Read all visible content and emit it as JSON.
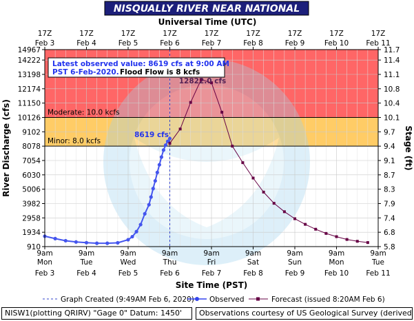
{
  "chart_data": {
    "type": "line",
    "title": "NISQUALLY RIVER NEAR NATIONAL",
    "top_axis_title": "Universal Time (UTC)",
    "top_axis_ticks": [
      {
        "line1": "17Z",
        "line2": "Feb 3"
      },
      {
        "line1": "17Z",
        "line2": "Feb 4"
      },
      {
        "line1": "17Z",
        "line2": "Feb 5"
      },
      {
        "line1": "17Z",
        "line2": "Feb 6"
      },
      {
        "line1": "17Z",
        "line2": "Feb 7"
      },
      {
        "line1": "17Z",
        "line2": "Feb 8"
      },
      {
        "line1": "17Z",
        "line2": "Feb 9"
      },
      {
        "line1": "17Z",
        "line2": "Feb 10"
      },
      {
        "line1": "17Z",
        "line2": "Feb 11"
      }
    ],
    "xlabel": "Site Time (PST)",
    "x_ticks": [
      {
        "line1": "9am",
        "line2": "Mon",
        "line3": "Feb 3"
      },
      {
        "line1": "9am",
        "line2": "Tue",
        "line3": "Feb 4"
      },
      {
        "line1": "9am",
        "line2": "Wed",
        "line3": "Feb 5"
      },
      {
        "line1": "9am",
        "line2": "Thu",
        "line3": "Feb 6"
      },
      {
        "line1": "9am",
        "line2": "Fri",
        "line3": "Feb 7"
      },
      {
        "line1": "9am",
        "line2": "Sat",
        "line3": "Feb 8"
      },
      {
        "line1": "9am",
        "line2": "Sun",
        "line3": "Feb 9"
      },
      {
        "line1": "9am",
        "line2": "Mon",
        "line3": "Feb 10"
      },
      {
        "line1": "9am",
        "line2": "Tue",
        "line3": "Feb 11"
      }
    ],
    "xlim_days": [
      0,
      8
    ],
    "ylabel": "River Discharge (cfs)",
    "y2label": "Stage (ft)",
    "ylim": [
      910,
      14967
    ],
    "y_ticks": [
      910,
      1934,
      2958,
      3982,
      5006,
      6030,
      7054,
      8078,
      9102,
      10126,
      11150,
      12174,
      13198,
      14222,
      14967
    ],
    "y2_ticks": [
      "5.8",
      "6.8",
      "7.4",
      "7.9",
      "8.3",
      "8.7",
      "9.1",
      "9.4",
      "9.7",
      "10.1",
      "10.4",
      "10.8",
      "11.1",
      "11.4",
      "11.7"
    ],
    "flood_bands": [
      {
        "name": "Moderate",
        "label": "Moderate: 10.0 kcfs",
        "from": 10126,
        "to": 14967,
        "color": "#ff6666"
      },
      {
        "name": "Minor",
        "label": "Minor: 8.0 kcfs",
        "from": 8078,
        "to": 10126,
        "color": "#ffcc66"
      }
    ],
    "grid": true,
    "annotation": {
      "line1": "Latest observed value: 8619 cfs at 9:00 AM",
      "line2a": "PST 6-Feb-2020.",
      "line2b": "Flood Flow is 8 kcfs"
    },
    "latest_label": "8619 cfs",
    "peak_label": "12822.0 cfs",
    "series": [
      {
        "name": "Observed",
        "color": "#4455ee",
        "x": [
          0,
          0.25,
          0.5,
          0.75,
          1.0,
          1.25,
          1.5,
          1.75,
          2.0,
          2.1,
          2.2,
          2.3,
          2.4,
          2.5,
          2.55,
          2.6,
          2.65,
          2.7,
          2.75,
          2.8,
          2.85,
          2.9,
          2.95,
          3.0
        ],
        "y": [
          1650,
          1480,
          1330,
          1240,
          1190,
          1150,
          1150,
          1180,
          1400,
          1620,
          1980,
          2480,
          3250,
          3900,
          4450,
          5050,
          5600,
          6200,
          6750,
          7300,
          7800,
          8150,
          8420,
          8619
        ]
      },
      {
        "name": "Forecast",
        "color": "#660044",
        "x": [
          3.0,
          3.25,
          3.5,
          3.75,
          4.0,
          4.25,
          4.5,
          4.75,
          5.0,
          5.25,
          5.5,
          5.75,
          6.0,
          6.25,
          6.5,
          6.75,
          7.0,
          7.25,
          7.5,
          7.75
        ],
        "y": [
          8280,
          9300,
          11200,
          12822,
          12600,
          10500,
          8078,
          6900,
          5800,
          4800,
          4000,
          3400,
          2900,
          2500,
          2150,
          1850,
          1620,
          1420,
          1290,
          1200
        ]
      }
    ]
  },
  "legend": {
    "graph_created": "Graph Created (9:49AM Feb 6, 2020)",
    "observed": "Observed",
    "forecast": "Forecast (issued 8:20AM Feb 6)"
  },
  "footer": {
    "left": "NISW1(plotting QRIRV) \"Gage 0\" Datum: 1450'",
    "right": "Observations courtesy of US Geological Survey (derived)"
  }
}
